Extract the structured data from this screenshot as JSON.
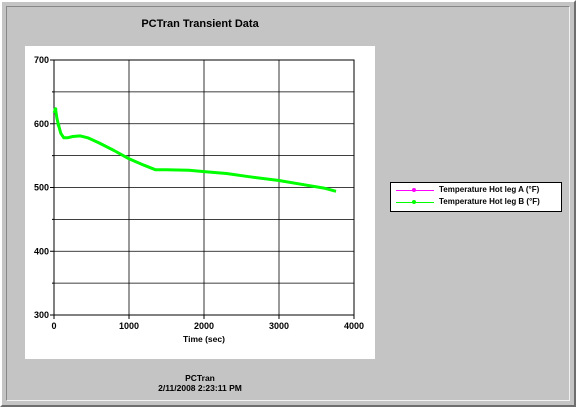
{
  "window": {
    "title": "PCTran Transient Data"
  },
  "chart_data": {
    "type": "line",
    "title": "PCTran Transient Data",
    "xlabel": "Time (sec)",
    "ylabel": "",
    "xlim": [
      0,
      4000
    ],
    "ylim": [
      300,
      700
    ],
    "x_ticks": [
      0,
      1000,
      2000,
      3000,
      4000
    ],
    "y_ticks": [
      300,
      400,
      500,
      600,
      700
    ],
    "grid": true,
    "legend_position": "right",
    "series": [
      {
        "name": "Temperature Hot leg A (°F)",
        "color": "#ff00ff",
        "x": [
          0,
          20,
          40,
          60,
          90,
          130,
          180,
          250,
          350,
          450,
          600,
          800,
          1000,
          1200,
          1350,
          1500,
          1800,
          2000,
          2300,
          2600,
          3000,
          3300,
          3600,
          3760
        ],
        "y": [
          617,
          623,
          608,
          598,
          585,
          578,
          578,
          580,
          581,
          578,
          570,
          558,
          545,
          535,
          528,
          528,
          527,
          525,
          522,
          517,
          511,
          505,
          499,
          494
        ]
      },
      {
        "name": "Temperature Hot leg B (°F)",
        "color": "#00ff00",
        "x": [
          0,
          20,
          40,
          60,
          90,
          130,
          180,
          250,
          350,
          450,
          600,
          800,
          1000,
          1200,
          1350,
          1500,
          1800,
          2000,
          2300,
          2600,
          3000,
          3300,
          3600,
          3760
        ],
        "y": [
          617,
          623,
          608,
          598,
          585,
          578,
          578,
          580,
          581,
          578,
          570,
          558,
          545,
          535,
          528,
          528,
          527,
          525,
          522,
          517,
          511,
          505,
          499,
          494
        ]
      }
    ]
  },
  "footer": {
    "app": "PCTran",
    "timestamp": "2/11/2008 2:23:11 PM"
  }
}
